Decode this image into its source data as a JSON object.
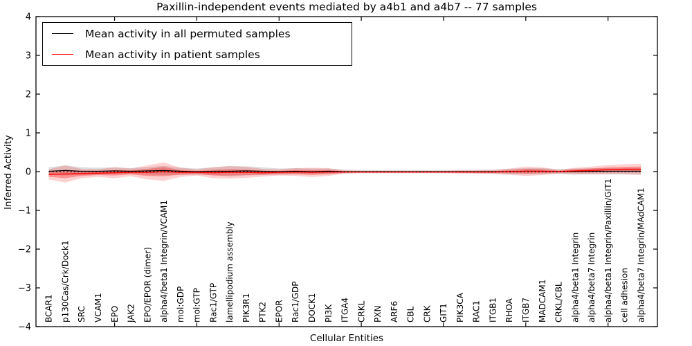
{
  "chart": {
    "title": "Paxillin-independent events mediated by a4b1 and a4b7 -- 77 samples",
    "xlabel": "Cellular Entities",
    "ylabel": "Inferred Activity",
    "legend": [
      {
        "label": "Mean activity in all permuted samples",
        "color": "#000000"
      },
      {
        "label": "Mean activity in patient samples",
        "color": "#ff0000"
      }
    ]
  },
  "chart_data": {
    "type": "line",
    "title": "Paxillin-independent events mediated by a4b1 and a4b7 -- 77 samples",
    "xlabel": "Cellular Entities",
    "ylabel": "Inferred Activity",
    "ylim": [
      -4,
      4
    ],
    "yticks": [
      -4,
      -3,
      -2,
      -1,
      0,
      1,
      2,
      3,
      4
    ],
    "ytick_labels": [
      "−4",
      "−3",
      "−2",
      "−1",
      "0",
      "1",
      "2",
      "3",
      "4"
    ],
    "xtick_positions": [
      5,
      10,
      15,
      20,
      25,
      30,
      35
    ],
    "grid": false,
    "legend_position": "upper left",
    "zero_line": {
      "style": "dotted",
      "color": "#000000",
      "y": 0
    },
    "categories": [
      "BCAR1",
      "p130Cas/Crk/Dock1",
      "SRC",
      "VCAM1",
      "EPO",
      "JAK2",
      "EPO/EPOR (dimer)",
      "alpha4/beta1 Integrin/VCAM1",
      "mol:GDP",
      "mol:GTP",
      "Rac1/GTP",
      "lamellipodium assembly",
      "PIK3R1",
      "PTK2",
      "EPOR",
      "Rac1/GDP",
      "DOCK1",
      "PI3K",
      "ITGA4",
      "CRKL",
      "PXN",
      "ARF6",
      "CBL",
      "CRK",
      "GIT1",
      "PIK3CA",
      "RAC1",
      "ITGB1",
      "RHOA",
      "ITGB7",
      "MADCAM1",
      "CRKL/CBL",
      "alpha4/beta1 Integrin",
      "alpha4/beta7 Integrin",
      "alpha4/beta1 Integrin/Paxillin/GIT1",
      "cell adhesion",
      "alpha4/beta7 Integrin/MAdCAM1"
    ],
    "series": [
      {
        "name": "Mean activity in all permuted samples",
        "color": "#000000",
        "band_color": "#000000",
        "band_opacity": 0.13,
        "values": [
          0.01,
          0.03,
          0.01,
          0.01,
          0.02,
          0.01,
          0.02,
          0.03,
          0.01,
          0.0,
          0.01,
          0.01,
          0.02,
          0.01,
          0.0,
          0.01,
          0.0,
          0.01,
          0.0,
          0.0,
          0.0,
          0.0,
          0.0,
          0.0,
          0.0,
          0.0,
          0.0,
          0.0,
          0.0,
          0.01,
          0.01,
          0.0,
          0.0,
          0.01,
          0.01,
          0.01,
          0.01
        ],
        "band": [
          0.1,
          0.13,
          0.1,
          0.09,
          0.09,
          0.08,
          0.1,
          0.12,
          0.09,
          0.08,
          0.1,
          0.14,
          0.12,
          0.1,
          0.08,
          0.08,
          0.08,
          0.07,
          0.05,
          0.04,
          0.04,
          0.04,
          0.04,
          0.04,
          0.04,
          0.04,
          0.05,
          0.05,
          0.07,
          0.08,
          0.08,
          0.06,
          0.08,
          0.08,
          0.08,
          0.08,
          0.09
        ]
      },
      {
        "name": "Mean activity in patient samples",
        "color": "#ff0000",
        "band_color": "#ff0000",
        "band_opacity": 0.18,
        "values": [
          -0.07,
          -0.06,
          -0.05,
          -0.04,
          -0.03,
          -0.02,
          -0.02,
          0.0,
          -0.02,
          -0.02,
          -0.03,
          -0.02,
          -0.02,
          -0.03,
          -0.02,
          -0.01,
          -0.02,
          -0.01,
          -0.01,
          -0.01,
          -0.01,
          -0.01,
          -0.01,
          -0.01,
          -0.01,
          -0.01,
          -0.01,
          -0.01,
          0.0,
          0.01,
          0.01,
          0.0,
          0.02,
          0.03,
          0.05,
          0.06,
          0.06
        ],
        "band": [
          0.13,
          0.22,
          0.12,
          0.1,
          0.14,
          0.1,
          0.18,
          0.24,
          0.12,
          0.08,
          0.14,
          0.16,
          0.14,
          0.1,
          0.08,
          0.1,
          0.12,
          0.1,
          0.04,
          0.03,
          0.03,
          0.03,
          0.03,
          0.03,
          0.03,
          0.04,
          0.04,
          0.05,
          0.08,
          0.12,
          0.1,
          0.05,
          0.08,
          0.1,
          0.12,
          0.13,
          0.14
        ]
      }
    ]
  }
}
